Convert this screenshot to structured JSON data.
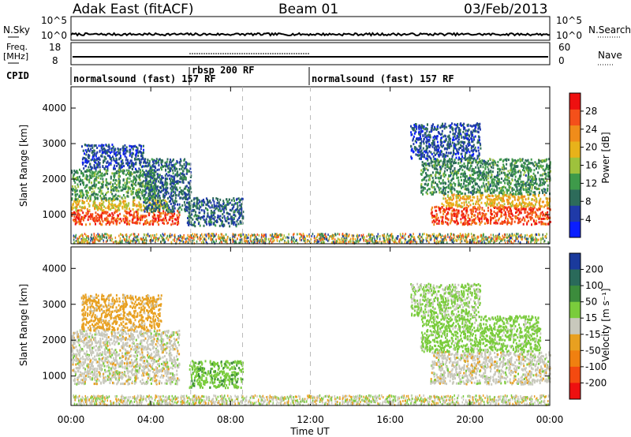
{
  "header": {
    "radar": "Adak East (fitACF)",
    "beam": "Beam 01",
    "date": "03/Feb/2013"
  },
  "strip_labels": {
    "nsky": "N.Sky",
    "nsearch": "N.Search",
    "freq_top": "Freq.",
    "freq_unit": "[MHz]",
    "nave": "Nave",
    "cpid": "CPID",
    "nsky_ticks": [
      "10^5",
      "10^0"
    ],
    "nsearch_ticks": [
      "10^5",
      "10^0"
    ],
    "freq_ticks": [
      "18",
      "8"
    ],
    "nave_ticks": [
      "60",
      "0"
    ]
  },
  "cpid_segments": [
    {
      "label": "normalsound (fast) 157 RF",
      "start_hour": 0.0
    },
    {
      "label": "rbsp 200 RF",
      "start_hour": 6.0
    },
    {
      "label": "normalsound (fast) 157 RF",
      "start_hour": 12.0
    }
  ],
  "chart_data": [
    {
      "type": "heatmap",
      "quantity": "Power",
      "xlabel": "Time UT",
      "ylabel": "Slant Range [km]",
      "x_tick_labels": [
        "00:00",
        "04:00",
        "08:00",
        "12:00",
        "16:00",
        "20:00",
        "00:00"
      ],
      "xlim_hours": [
        0,
        24
      ],
      "ylim": [
        180,
        4600
      ],
      "y_ticks": [
        1000,
        2000,
        3000,
        4000
      ],
      "colorbar": {
        "label": "Power [dB]",
        "ticks": [
          4,
          8,
          12,
          16,
          20,
          24,
          28
        ],
        "range": [
          0,
          32
        ],
        "colors": [
          "#0a1eff",
          "#1f3aa8",
          "#2d6b5a",
          "#3e9a4a",
          "#9ec23c",
          "#e8b21a",
          "#f08c1a",
          "#f4501a",
          "#ee1010"
        ]
      },
      "regions": [
        {
          "x": [
            0.0,
            5.4
          ],
          "y": [
            750,
            1150
          ],
          "value": 27
        },
        {
          "x": [
            0.0,
            4.8
          ],
          "y": [
            1150,
            1450
          ],
          "value": 19
        },
        {
          "x": [
            0.0,
            4.2
          ],
          "y": [
            1450,
            2300
          ],
          "value": 12
        },
        {
          "x": [
            0.5,
            3.6
          ],
          "y": [
            2300,
            3000
          ],
          "value": 6
        },
        {
          "x": [
            3.6,
            6.0
          ],
          "y": [
            1100,
            2600
          ],
          "value": 8
        },
        {
          "x": [
            5.8,
            8.6
          ],
          "y": [
            700,
            1500
          ],
          "value": 8
        },
        {
          "x": [
            18.0,
            24.0
          ],
          "y": [
            750,
            1250
          ],
          "value": 27
        },
        {
          "x": [
            18.5,
            24.0
          ],
          "y": [
            1250,
            1600
          ],
          "value": 20
        },
        {
          "x": [
            17.5,
            24.0
          ],
          "y": [
            1600,
            2600
          ],
          "value": 11
        },
        {
          "x": [
            17.0,
            20.5
          ],
          "y": [
            2600,
            3600
          ],
          "value": 6
        }
      ]
    },
    {
      "type": "heatmap",
      "quantity": "Velocity",
      "xlabel": "Time UT",
      "ylabel": "Slant Range [km]",
      "x_tick_labels": [
        "00:00",
        "04:00",
        "08:00",
        "12:00",
        "16:00",
        "20:00",
        "00:00"
      ],
      "xlim_hours": [
        0,
        24
      ],
      "ylim": [
        180,
        4600
      ],
      "y_ticks": [
        1000,
        2000,
        3000,
        4000
      ],
      "colorbar": {
        "label": "Velocity [m s⁻¹]",
        "ticks": [
          200,
          100,
          50,
          15,
          -15,
          -50,
          -100,
          -200
        ],
        "colors": [
          "#1a3a9c",
          "#2a6a5a",
          "#3c8c3c",
          "#7acc3c",
          "#c8c8bc",
          "#e8a020",
          "#f08010",
          "#f44a10",
          "#ee1010"
        ]
      },
      "regions": [
        {
          "x": [
            0.0,
            5.4
          ],
          "y": [
            800,
            2300
          ],
          "value": 0
        },
        {
          "x": [
            0.5,
            4.5
          ],
          "y": [
            2300,
            3300
          ],
          "value": -30
        },
        {
          "x": [
            5.9,
            8.6
          ],
          "y": [
            700,
            1450
          ],
          "value": 40
        },
        {
          "x": [
            18.0,
            24.0
          ],
          "y": [
            800,
            1700
          ],
          "value": 0
        },
        {
          "x": [
            17.5,
            23.5
          ],
          "y": [
            1700,
            2700
          ],
          "value": 30
        },
        {
          "x": [
            17.0,
            20.5
          ],
          "y": [
            2700,
            3600
          ],
          "value": 20
        }
      ]
    }
  ]
}
